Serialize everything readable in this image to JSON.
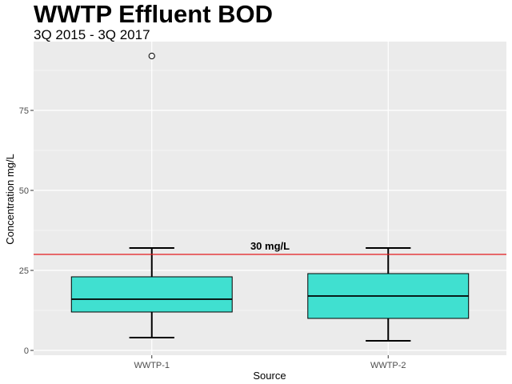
{
  "chart_data": {
    "type": "box",
    "title": "WWTP Effluent BOD",
    "subtitle": "3Q 2015 - 3Q 2017",
    "xlabel": "Source",
    "ylabel": "Concentration mg/L",
    "categories": [
      "WWTP-1",
      "WWTP-2"
    ],
    "boxes": [
      {
        "category": "WWTP-1",
        "min": 4,
        "q1": 12,
        "median": 16,
        "q3": 23,
        "max": 32,
        "outliers": [
          92
        ]
      },
      {
        "category": "WWTP-2",
        "min": 3,
        "q1": 10,
        "median": 17,
        "q3": 24,
        "max": 32,
        "outliers": []
      }
    ],
    "ylim": [
      -1.5,
      96.5
    ],
    "yticks": [
      0,
      25,
      50,
      75
    ],
    "reference_line": {
      "value": 30,
      "label": "30 mg/L",
      "color": "#e31a1c"
    },
    "colors": {
      "box_fill": "#40e0d0",
      "panel_bg": "#ebebeb",
      "grid": "#ffffff"
    },
    "grid": true,
    "legend": "none"
  }
}
